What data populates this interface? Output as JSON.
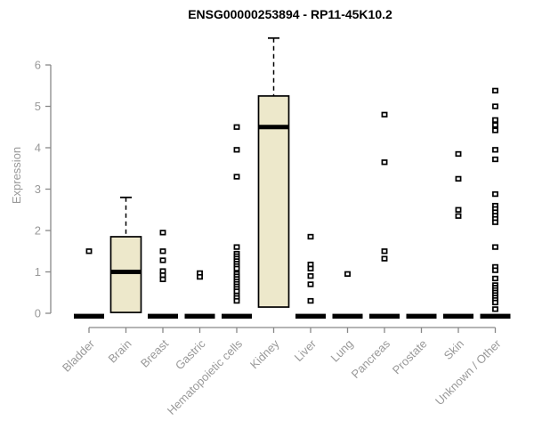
{
  "chart_data": {
    "type": "boxplot",
    "title": "ENSG00000253894 - RP11-45K10.2",
    "ylabel": "Expression",
    "xlabel": "",
    "ylim": [
      0,
      6.8
    ],
    "yticks": [
      0,
      1,
      2,
      3,
      4,
      5,
      6
    ],
    "grid": false,
    "legend": "none",
    "colors": {
      "box_fill": "#EDE8CB",
      "box_stroke": "#000000",
      "axis": "#888888",
      "tick_text": "#999999",
      "title_text": "#000000",
      "background": "#FFFFFF"
    },
    "categories": [
      "Bladder",
      "Brain",
      "Breast",
      "Gastric",
      "Hematopoietic cells",
      "Kidney",
      "Liver",
      "Lung",
      "Pancreas",
      "Prostate",
      "Skin",
      "Unknown / Other"
    ],
    "boxes": [
      {
        "category": "Bladder",
        "collapsed": true,
        "median": 0,
        "outliers": [
          1.5
        ]
      },
      {
        "category": "Brain",
        "collapsed": false,
        "q1": 0.02,
        "median": 1.0,
        "q3": 1.85,
        "whisker_low": 0.02,
        "whisker_high": 2.8,
        "outliers": []
      },
      {
        "category": "Breast",
        "collapsed": true,
        "median": 0,
        "outliers": [
          1.95,
          1.5,
          1.28,
          1.02,
          0.92,
          0.82
        ]
      },
      {
        "category": "Gastric",
        "collapsed": true,
        "median": 0,
        "outliers": [
          0.97,
          0.88
        ]
      },
      {
        "category": "Hematopoietic cells",
        "collapsed": true,
        "median": 0,
        "outliers": [
          4.5,
          3.95,
          3.3,
          1.6,
          1.44,
          1.38,
          1.32,
          1.26,
          1.2,
          1.14,
          1.08,
          0.95,
          0.89,
          0.83,
          0.77,
          0.71,
          0.65,
          0.59,
          0.53,
          0.43,
          0.37,
          0.3
        ]
      },
      {
        "category": "Kidney",
        "collapsed": false,
        "q1": 0.15,
        "median": 4.5,
        "q3": 5.25,
        "whisker_low": 0.15,
        "whisker_high": 6.65,
        "outliers": []
      },
      {
        "category": "Liver",
        "collapsed": true,
        "median": 0,
        "outliers": [
          1.85,
          1.18,
          1.08,
          0.9,
          0.7,
          0.3
        ]
      },
      {
        "category": "Lung",
        "collapsed": true,
        "median": 0,
        "outliers": [
          0.95
        ]
      },
      {
        "category": "Pancreas",
        "collapsed": true,
        "median": 0,
        "outliers": [
          4.8,
          3.65,
          1.5,
          1.32
        ]
      },
      {
        "category": "Prostate",
        "collapsed": true,
        "median": 0,
        "outliers": []
      },
      {
        "category": "Skin",
        "collapsed": true,
        "median": 0,
        "outliers": [
          3.85,
          3.25,
          2.5,
          2.35
        ]
      },
      {
        "category": "Unknown / Other",
        "collapsed": true,
        "median": 0,
        "outliers": [
          5.38,
          5.0,
          4.67,
          4.55,
          4.42,
          3.95,
          3.72,
          2.88,
          2.6,
          2.52,
          2.44,
          2.36,
          2.28,
          2.2,
          1.6,
          1.12,
          1.04,
          0.84,
          0.68,
          0.62,
          0.56,
          0.5,
          0.44,
          0.38,
          0.32,
          0.26,
          0.1
        ]
      }
    ]
  }
}
